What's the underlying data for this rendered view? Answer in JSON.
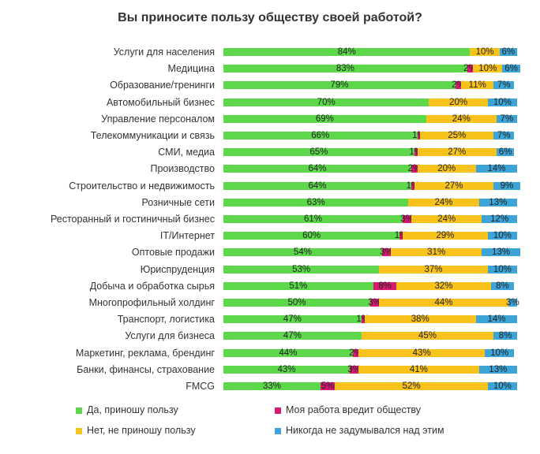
{
  "chart_data": {
    "type": "bar",
    "orientation": "horizontal",
    "stacked": true,
    "title": "Вы приносите пользу обществу своей работой?",
    "categories": [
      "Услуги для населения",
      "Медицина",
      "Образование/тренинги",
      "Автомобильный бизнес",
      "Управление персоналом",
      "Телекоммуникации и связь",
      "СМИ, медиа",
      "Производство",
      "Строительство и недвижимость",
      "Розничные сети",
      "Ресторанный и гостиничный бизнес",
      "IT/Интернет",
      "Оптовые продажи",
      "Юриспруденция",
      "Добыча и обработка сырья",
      "Многопрофильный холдинг",
      "Транспорт, логистика",
      "Услуги для бизнеса",
      "Маркетинг, реклама, брендинг",
      "Банки, финансы, страхование",
      "FMCG"
    ],
    "series": [
      {
        "name": "Да, приношу пользу",
        "color": "#5cd84a",
        "values": [
          84,
          83,
          79,
          70,
          69,
          66,
          65,
          64,
          64,
          63,
          61,
          60,
          54,
          53,
          51,
          50,
          47,
          47,
          44,
          43,
          33
        ],
        "labels": [
          "84%",
          "83%",
          "79%",
          "70%",
          "69%",
          "66%",
          "65%",
          "64%",
          "64%",
          "63%",
          "61%",
          "60%",
          "54%",
          "53%",
          "51%",
          "50%",
          "47%",
          "47%",
          "44%",
          "43%",
          "33%"
        ]
      },
      {
        "name": "Моя работа вредит обществу",
        "color": "#d81b70",
        "values": [
          0,
          2,
          2,
          0,
          0,
          1,
          1,
          2,
          1,
          0,
          3,
          1,
          3,
          0,
          8,
          3,
          1,
          0,
          2,
          3,
          5
        ],
        "labels": [
          "",
          "2%",
          "2%",
          "",
          "",
          "1%",
          "1%",
          "2%",
          "1%",
          "",
          "3%",
          "1%",
          "3%",
          "",
          "8%",
          "3%",
          "1%",
          "",
          "2%",
          "3%",
          "5%"
        ]
      },
      {
        "name": "Нет, не приношу пользу",
        "color": "#f7c21c",
        "values": [
          10,
          10,
          11,
          20,
          24,
          25,
          27,
          20,
          27,
          24,
          24,
          29,
          31,
          37,
          32,
          44,
          38,
          45,
          43,
          41,
          52
        ],
        "labels": [
          "10%",
          "10%",
          "11%",
          "20%",
          "24%",
          "25%",
          "27%",
          "20%",
          "27%",
          "24%",
          "24%",
          "29%",
          "31%",
          "37%",
          "32%",
          "44%",
          "38%",
          "45%",
          "43%",
          "41%",
          "52%"
        ]
      },
      {
        "name": "Никогда не задумывался над этим",
        "color": "#3ca4d6",
        "values": [
          6,
          6,
          7,
          10,
          7,
          7,
          6,
          14,
          9,
          13,
          12,
          10,
          13,
          10,
          8,
          3,
          14,
          8,
          10,
          13,
          10
        ],
        "labels": [
          "6%",
          "6%",
          "7%",
          "10%",
          "7%",
          "7%",
          "6%",
          "14%",
          "9%",
          "13%",
          "12%",
          "10%",
          "13%",
          "10%",
          "8%",
          "3%",
          "14%",
          "8%",
          "10%",
          "13%",
          "10%"
        ]
      }
    ],
    "xlim": [
      0,
      100
    ],
    "grid": false,
    "legend_position": "bottom"
  }
}
